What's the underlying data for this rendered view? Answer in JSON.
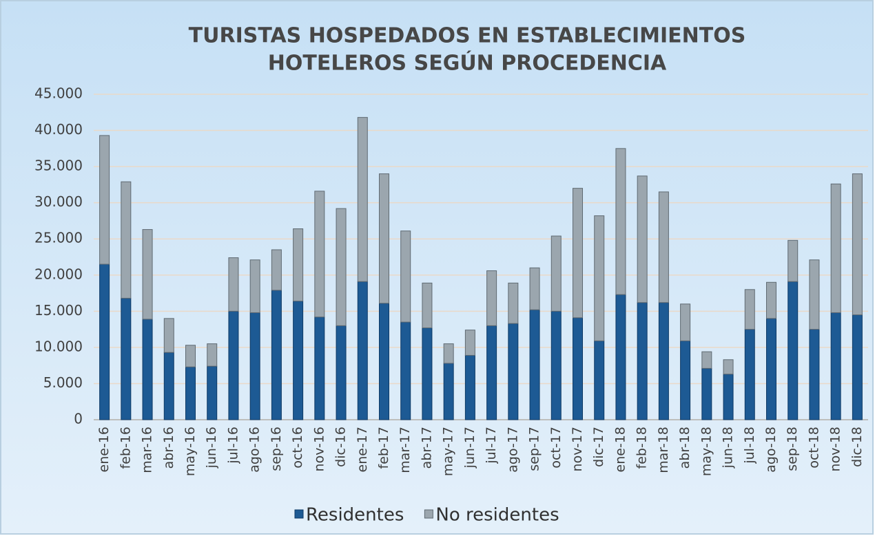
{
  "chart_data": {
    "type": "stacked_bar",
    "title": [
      "TURISTAS HOSPEDADOS EN ESTABLECIMIENTOS",
      "HOTELEROS SEGÚN PROCEDENCIA"
    ],
    "categories": [
      "ene-16",
      "feb-16",
      "mar-16",
      "abr-16",
      "may-16",
      "jun-16",
      "jul-16",
      "ago-16",
      "sep-16",
      "oct-16",
      "nov-16",
      "dic-16",
      "ene-17",
      "feb-17",
      "mar-17",
      "abr-17",
      "may-17",
      "jun-17",
      "jul-17",
      "ago-17",
      "sep-17",
      "oct-17",
      "nov-17",
      "dic-17",
      "ene-18",
      "feb-18",
      "mar-18",
      "abr-18",
      "may-18",
      "jun-18",
      "jul-18",
      "ago-18",
      "sep-18",
      "oct-18",
      "nov-18",
      "dic-18"
    ],
    "series": [
      {
        "name": "Residentes",
        "color": "#1d5a94",
        "values": [
          21500,
          16800,
          13900,
          9300,
          7300,
          7400,
          15000,
          14800,
          17900,
          16400,
          14200,
          13000,
          19100,
          16100,
          13500,
          12700,
          7800,
          8900,
          13000,
          13300,
          15200,
          15000,
          14100,
          10900,
          17300,
          16200,
          16200,
          10900,
          7100,
          6300,
          12500,
          14000,
          19100,
          12500,
          14800,
          14500
        ]
      },
      {
        "name": "No residentes",
        "color": "#9ba6ae",
        "values": [
          17800,
          16100,
          12400,
          4700,
          3000,
          3100,
          7400,
          7300,
          5600,
          10000,
          17400,
          16200,
          22700,
          17900,
          12600,
          6200,
          2700,
          3500,
          7600,
          5600,
          5800,
          10400,
          17900,
          17300,
          20200,
          17500,
          15300,
          5100,
          2300,
          2000,
          5500,
          5000,
          5700,
          9600,
          17800,
          19500
        ]
      }
    ],
    "ylim": [
      0,
      45000
    ],
    "yticks": [
      0,
      {
        "value": 5000,
        "label": "5.000"
      },
      {
        "value": 10000,
        "label": "10.000"
      },
      {
        "value": 15000,
        "label": "15.000"
      },
      {
        "value": 20000,
        "label": "20.000"
      },
      {
        "value": 25000,
        "label": "25.000"
      },
      {
        "value": 30000,
        "label": "30.000"
      },
      {
        "value": 35000,
        "label": "35.000"
      },
      {
        "value": 40000,
        "label": "40.000"
      },
      {
        "value": 45000,
        "label": "45.000"
      }
    ],
    "grid": true,
    "legend": "bottom"
  }
}
